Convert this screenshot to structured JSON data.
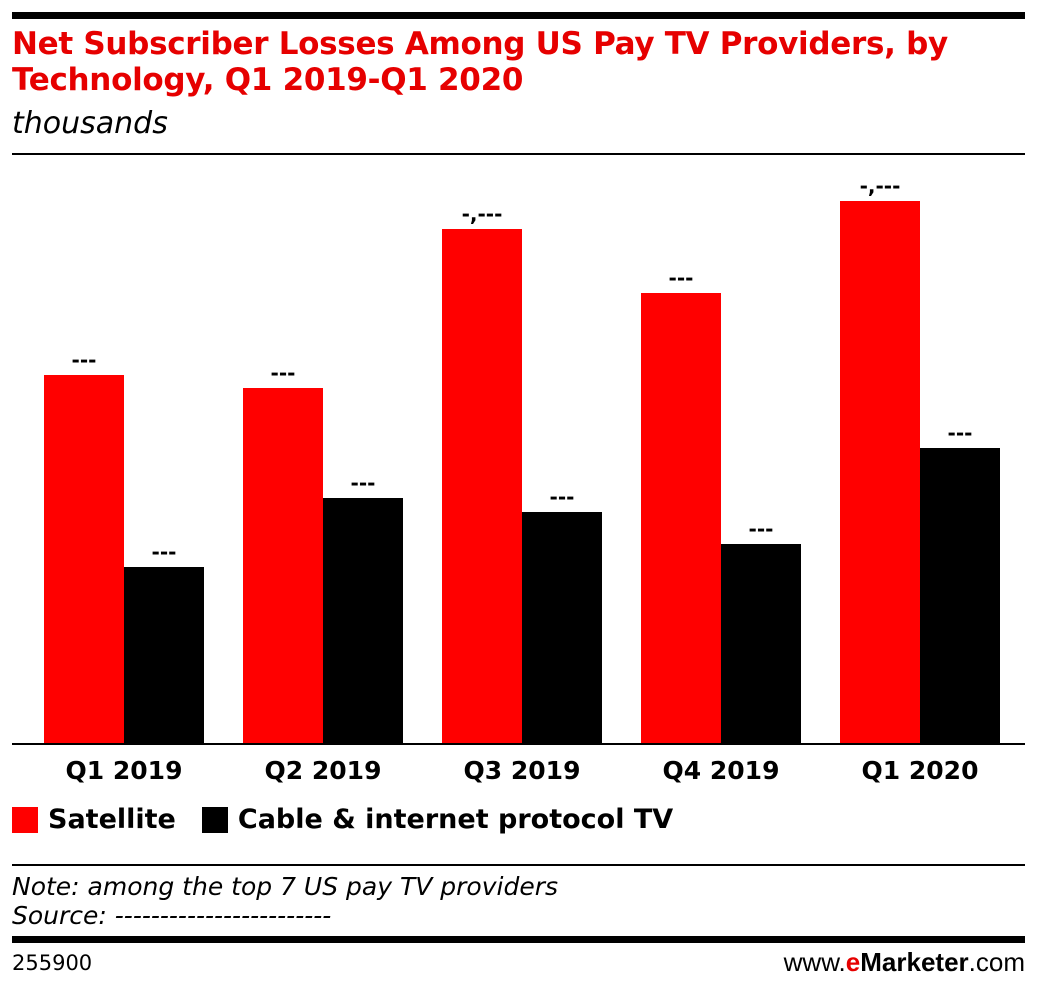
{
  "title": "Net Subscriber Losses Among US Pay TV Providers, by Technology, Q1 2019-Q1 2020",
  "subtitle": "thousands",
  "chart_data": {
    "type": "bar",
    "title": "Net Subscriber Losses Among US Pay TV Providers, by Technology, Q1 2019-Q1 2020",
    "ylabel": "thousands",
    "categories": [
      "Q1 2019",
      "Q2 2019",
      "Q3 2019",
      "Q4 2019",
      "Q1 2020"
    ],
    "ylim": [
      0,
      1180
    ],
    "grid": false,
    "legend_position": "bottom-left",
    "series": [
      {
        "name": "Satellite",
        "color": "#ff0000",
        "values": [
          738,
          712,
          1030,
          902,
          1086
        ],
        "labels": [
          "---",
          "---",
          "-,---",
          "---",
          "-,---"
        ]
      },
      {
        "name": "Cable & internet protocol TV",
        "color": "#000000",
        "values": [
          354,
          492,
          464,
          400,
          592
        ],
        "labels": [
          "---",
          "---",
          "---",
          "---",
          "---"
        ]
      }
    ]
  },
  "note": "Note: among the top 7 US pay TV providers",
  "source": "Source: ------------------------",
  "chart_id": "255900",
  "logo": {
    "prefix": "www.",
    "e": "e",
    "brand": "Marketer",
    "suffix": ".com"
  }
}
